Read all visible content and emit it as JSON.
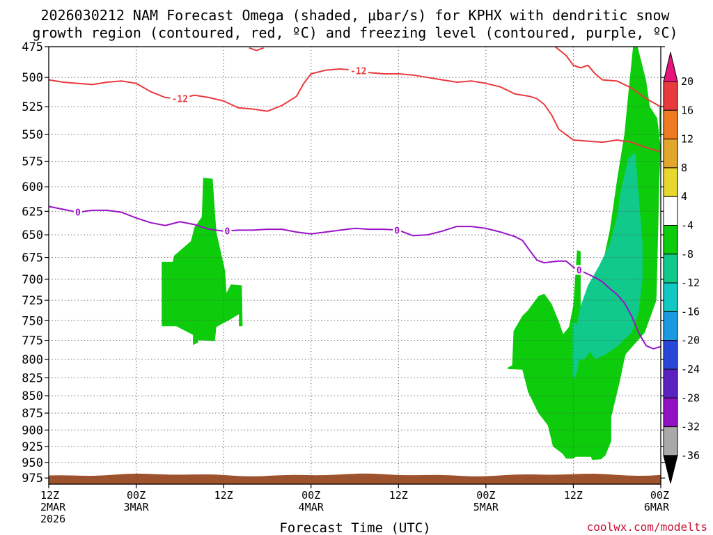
{
  "chart_data": {
    "type": "contour",
    "title_line1": "2026030212 NAM Forecast Omega (shaded, μbar/s) for KPHX with dendritic snow",
    "title_line2": "growth region (contoured, red, ºC) and freezing level (contoured, purple, ºC)",
    "xlabel": "Forecast Time (UTC)",
    "credit": "coolwx.com/modelts",
    "y_axis": {
      "unit": "hPa",
      "range": [
        475,
        985
      ],
      "ticks": [
        475,
        500,
        525,
        550,
        575,
        600,
        625,
        650,
        675,
        700,
        725,
        750,
        775,
        800,
        825,
        850,
        875,
        900,
        925,
        950,
        975
      ]
    },
    "x_axis": {
      "unit": "forecast hour",
      "range": [
        0,
        84
      ],
      "ticks": [
        {
          "h": 0,
          "lines": [
            "12Z",
            "2MAR",
            "2026"
          ]
        },
        {
          "h": 12,
          "lines": [
            "00Z",
            "3MAR"
          ]
        },
        {
          "h": 24,
          "lines": [
            "12Z"
          ]
        },
        {
          "h": 36,
          "lines": [
            "00Z",
            "4MAR"
          ]
        },
        {
          "h": 48,
          "lines": [
            "12Z"
          ]
        },
        {
          "h": 60,
          "lines": [
            "00Z",
            "5MAR"
          ]
        },
        {
          "h": 72,
          "lines": [
            "12Z"
          ]
        },
        {
          "h": 84,
          "lines": [
            "00Z",
            "6MAR"
          ]
        }
      ]
    },
    "colorbar": {
      "labels": [
        "20",
        "16",
        "12",
        "8",
        "4",
        "-4",
        "-8",
        "-12",
        "-16",
        "-20",
        "-24",
        "-28",
        "-32",
        "-36"
      ],
      "colors": [
        "#e8393c",
        "#f07a22",
        "#e2a62a",
        "#e8d82e",
        "#ffffff",
        "#0ccc0c",
        "#11c98a",
        "#11c9c2",
        "#1a9ae0",
        "#2846d8",
        "#5a20c0",
        "#9012c4",
        "#a9a9a9"
      ],
      "top_color": "#e8137c",
      "bottom_color": "#000000"
    },
    "snow_growth_isotherm": {
      "label": "-12",
      "color": "#e8393c",
      "points": [
        [
          0,
          502
        ],
        [
          2,
          504
        ],
        [
          4,
          505
        ],
        [
          6,
          506
        ],
        [
          8,
          504
        ],
        [
          10,
          503
        ],
        [
          12,
          505
        ],
        [
          14,
          512
        ],
        [
          16,
          517
        ],
        [
          18,
          518
        ],
        [
          20,
          515
        ],
        [
          22,
          517
        ],
        [
          24,
          520
        ],
        [
          26,
          526
        ],
        [
          28,
          527
        ],
        [
          30,
          529
        ],
        [
          32,
          524
        ],
        [
          34,
          516
        ],
        [
          35,
          505
        ],
        [
          36,
          497
        ],
        [
          38,
          494
        ],
        [
          40,
          493
        ],
        [
          42,
          494
        ],
        [
          44,
          496
        ],
        [
          46,
          497
        ],
        [
          48,
          497
        ],
        [
          50,
          498
        ],
        [
          52,
          500
        ],
        [
          54,
          502
        ],
        [
          56,
          504
        ],
        [
          58,
          503
        ],
        [
          60,
          505
        ],
        [
          62,
          508
        ],
        [
          64,
          514
        ],
        [
          66,
          516
        ],
        [
          67,
          518
        ],
        [
          68,
          523
        ],
        [
          69,
          532
        ],
        [
          70,
          545
        ],
        [
          72,
          555
        ],
        [
          74,
          556
        ],
        [
          76,
          557
        ],
        [
          77,
          556
        ],
        [
          78,
          555
        ],
        [
          80,
          557
        ],
        [
          82,
          562
        ],
        [
          84,
          566
        ]
      ]
    },
    "upper_isotherm_segments": [
      {
        "color": "#e8393c",
        "points": [
          [
            27.5,
            476
          ],
          [
            28.5,
            478
          ],
          [
            29.5,
            476
          ]
        ]
      },
      {
        "color": "#e8393c",
        "points": [
          [
            69.5,
            475
          ],
          [
            71,
            482
          ],
          [
            72,
            490
          ],
          [
            73,
            492
          ],
          [
            74,
            490
          ],
          [
            75,
            497
          ],
          [
            76,
            502
          ],
          [
            78,
            503
          ],
          [
            80,
            509
          ],
          [
            82,
            518
          ],
          [
            84,
            525
          ]
        ]
      }
    ],
    "freezing_level": {
      "label": "0",
      "color": "#9a12c8",
      "points": [
        [
          0,
          620
        ],
        [
          2,
          623
        ],
        [
          4,
          626
        ],
        [
          6,
          624
        ],
        [
          8,
          624
        ],
        [
          10,
          626
        ],
        [
          12,
          632
        ],
        [
          14,
          637
        ],
        [
          16,
          640
        ],
        [
          18,
          636
        ],
        [
          20,
          639
        ],
        [
          22,
          644
        ],
        [
          24,
          646
        ],
        [
          26,
          645
        ],
        [
          28,
          645
        ],
        [
          30,
          644
        ],
        [
          32,
          644
        ],
        [
          34,
          647
        ],
        [
          36,
          649
        ],
        [
          38,
          647
        ],
        [
          40,
          645
        ],
        [
          42,
          643
        ],
        [
          44,
          644
        ],
        [
          46,
          644
        ],
        [
          48,
          645
        ],
        [
          50,
          651
        ],
        [
          52,
          650
        ],
        [
          54,
          646
        ],
        [
          56,
          641
        ],
        [
          58,
          641
        ],
        [
          60,
          643
        ],
        [
          62,
          647
        ],
        [
          64,
          652
        ],
        [
          65,
          656
        ],
        [
          66,
          667
        ],
        [
          67,
          678
        ],
        [
          68,
          681
        ],
        [
          69,
          680
        ],
        [
          70,
          679
        ],
        [
          71,
          679
        ],
        [
          72,
          686
        ],
        [
          73,
          690
        ],
        [
          74,
          694
        ],
        [
          75,
          698
        ],
        [
          76,
          703
        ],
        [
          77,
          711
        ],
        [
          78,
          718
        ],
        [
          79,
          728
        ],
        [
          80,
          744
        ],
        [
          81,
          766
        ],
        [
          82,
          782
        ],
        [
          83,
          786
        ],
        [
          84,
          783
        ]
      ]
    },
    "omega_regions": [
      {
        "level": "-4",
        "color": "#0ccc0c",
        "points": [
          [
            15.5,
            680
          ],
          [
            17,
            680
          ],
          [
            17.2,
            673
          ],
          [
            19.5,
            657
          ],
          [
            20,
            642
          ],
          [
            21,
            631
          ],
          [
            21.2,
            591
          ],
          [
            22.5,
            592
          ],
          [
            23,
            647
          ],
          [
            24.2,
            690
          ],
          [
            24.4,
            716
          ],
          [
            25,
            706
          ],
          [
            26.5,
            707
          ],
          [
            26.6,
            757
          ],
          [
            26.1,
            757
          ],
          [
            26.1,
            742
          ],
          [
            25,
            748
          ],
          [
            24,
            753
          ],
          [
            23,
            758
          ],
          [
            22.8,
            776
          ],
          [
            20.5,
            775
          ],
          [
            20.5,
            778
          ],
          [
            19.8,
            781
          ],
          [
            19.8,
            768
          ],
          [
            17.5,
            757
          ],
          [
            15.5,
            757
          ]
        ]
      },
      {
        "level": "-4",
        "color": "#0ccc0c",
        "points": [
          [
            63,
            811
          ],
          [
            63.6,
            808
          ],
          [
            63.8,
            763
          ],
          [
            65,
            744
          ],
          [
            65.8,
            737
          ],
          [
            67.2,
            720
          ],
          [
            68,
            717
          ],
          [
            69,
            729
          ],
          [
            70,
            751
          ],
          [
            70.6,
            767
          ],
          [
            71.4,
            758
          ],
          [
            72,
            731
          ],
          [
            72.5,
            667
          ],
          [
            73,
            668
          ],
          [
            73,
            736
          ],
          [
            74,
            713
          ],
          [
            75,
            701
          ],
          [
            76,
            683
          ],
          [
            77,
            645
          ],
          [
            78,
            593
          ],
          [
            79,
            550
          ],
          [
            79.6,
            510
          ],
          [
            80.2,
            475
          ],
          [
            80.6,
            470
          ],
          [
            82,
            503
          ],
          [
            82.5,
            525
          ],
          [
            83.5,
            535
          ],
          [
            84,
            562
          ],
          [
            83.8,
            595
          ],
          [
            83.6,
            660
          ],
          [
            83.4,
            725
          ],
          [
            82.6,
            745
          ],
          [
            81.8,
            765
          ],
          [
            80.4,
            780
          ],
          [
            79.2,
            793
          ],
          [
            79,
            800
          ],
          [
            78.4,
            829
          ],
          [
            77.2,
            881
          ],
          [
            77.2,
            917
          ],
          [
            76.4,
            939
          ],
          [
            75.8,
            945
          ],
          [
            74.6,
            946
          ],
          [
            74.4,
            941
          ],
          [
            72.3,
            941
          ],
          [
            72,
            944
          ],
          [
            71,
            944
          ],
          [
            70.5,
            936
          ],
          [
            69.2,
            925
          ],
          [
            68.5,
            893
          ],
          [
            67.2,
            875
          ],
          [
            65.8,
            845
          ],
          [
            65,
            814
          ],
          [
            63,
            813
          ]
        ]
      },
      {
        "level": "-4",
        "color": "#0ccc0c",
        "points": [
          [
            83.8,
            525
          ],
          [
            84,
            525
          ],
          [
            84,
            552
          ],
          [
            83.8,
            552
          ]
        ]
      },
      {
        "level": "-8",
        "color": "#11c98a",
        "points": [
          [
            71.9,
            752
          ],
          [
            72.5,
            754
          ],
          [
            73,
            732
          ],
          [
            74,
            707
          ],
          [
            75.5,
            685
          ],
          [
            77,
            660
          ],
          [
            78,
            630
          ],
          [
            78.5,
            605
          ],
          [
            79.5,
            573
          ],
          [
            80.5,
            566
          ],
          [
            81.2,
            630
          ],
          [
            81.5,
            660
          ],
          [
            81.5,
            700
          ],
          [
            81,
            738
          ],
          [
            80,
            765
          ],
          [
            78,
            783
          ],
          [
            76.5,
            793
          ],
          [
            75,
            800
          ],
          [
            74.3,
            790
          ],
          [
            73.5,
            800
          ],
          [
            72.8,
            800
          ],
          [
            72.5,
            817
          ],
          [
            72.1,
            827
          ],
          [
            71.9,
            822
          ],
          [
            71.9,
            780
          ]
        ]
      }
    ],
    "terrain": {
      "color": "#a0522d",
      "top_level": 970,
      "bottom_level": 985
    }
  }
}
